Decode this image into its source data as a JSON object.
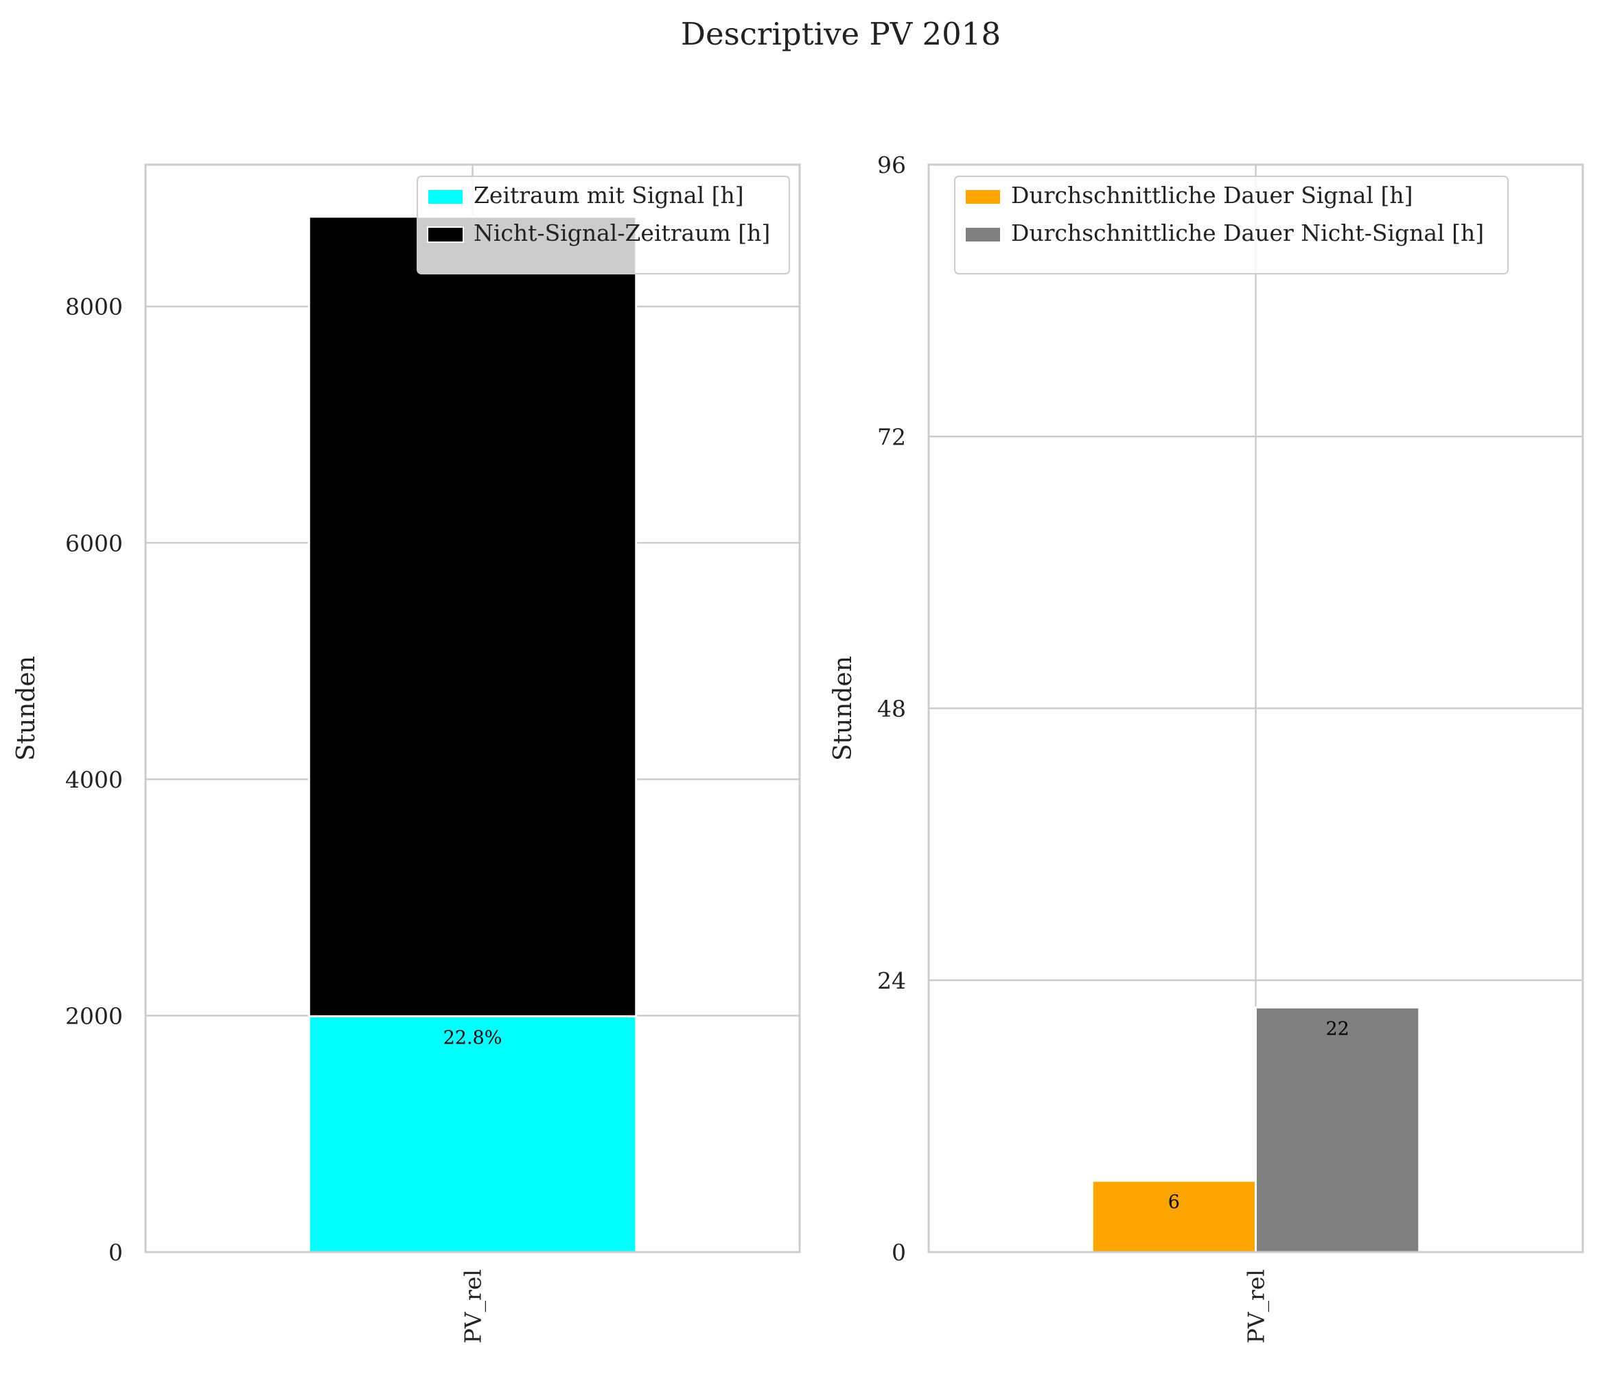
{
  "figure": {
    "title": "Descriptive PV 2018"
  },
  "colors": {
    "signal_time": "#00ffff",
    "non_signal_time": "#000000",
    "avg_signal": "#ffa500",
    "avg_non_signal": "#808080",
    "grid": "#cccccc",
    "axes_edge": "#cccccc",
    "text": "#222222"
  },
  "chart_data": [
    {
      "type": "bar",
      "stacked": true,
      "categories": [
        "PV_rel"
      ],
      "series": [
        {
          "name": "Zeitraum mit Signal [h]",
          "values": [
            1995
          ],
          "color_key": "signal_time"
        },
        {
          "name": "Nicht-Signal-Zeitraum [h]",
          "values": [
            6765
          ],
          "color_key": "non_signal_time"
        }
      ],
      "annotations": [
        {
          "series": 0,
          "category": 0,
          "text": "22.8%"
        }
      ],
      "xlabel": "",
      "ylabel": "Stunden",
      "ylim": [
        0,
        9200
      ],
      "yticks": [
        0,
        2000,
        4000,
        6000,
        8000
      ],
      "grid": true,
      "legend": "top-right"
    },
    {
      "type": "bar",
      "stacked": false,
      "categories": [
        "PV_rel"
      ],
      "series": [
        {
          "name": "Durchschnittliche Dauer Signal [h]",
          "values": [
            6.3
          ],
          "color_key": "avg_signal"
        },
        {
          "name": "Durchschnittliche Dauer Nicht-Signal [h]",
          "values": [
            21.6
          ],
          "color_key": "avg_non_signal"
        }
      ],
      "annotations": [
        {
          "series": 0,
          "category": 0,
          "text": "6"
        },
        {
          "series": 1,
          "category": 0,
          "text": "22"
        }
      ],
      "xlabel": "",
      "ylabel": "Stunden",
      "ylim": [
        0,
        96
      ],
      "yticks": [
        0,
        24,
        48,
        72,
        96
      ],
      "grid": true,
      "legend": "top-left"
    }
  ]
}
